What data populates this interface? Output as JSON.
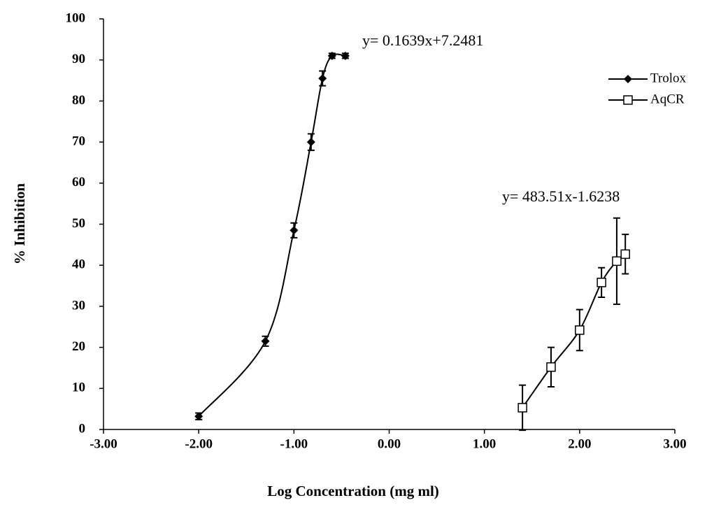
{
  "chart_data": {
    "type": "line",
    "x_label": "Log Concentration (mg ml)",
    "y_label": "% Inhibition",
    "annotations": [
      "y= 0.1639x+7.2481",
      "y= 483.51x-1.6238"
    ],
    "series": [
      {
        "name": "Trolox",
        "color": "#000000",
        "marker": "diamond",
        "x": [
          -2.0,
          -1.3,
          -1.0,
          -0.82,
          -0.7,
          -0.6,
          -0.46
        ],
        "values": [
          3.2,
          21.5,
          48.5,
          70,
          85.5,
          91,
          91
        ],
        "errors": [
          0.8,
          1.2,
          1.8,
          2,
          1.8,
          0.6,
          0.6
        ]
      },
      {
        "name": "AqCR",
        "color": "#000000",
        "marker": "square",
        "x": [
          1.4,
          1.7,
          2.0,
          2.23,
          2.39,
          2.48
        ],
        "values": [
          5.3,
          15.2,
          24.2,
          35.8,
          41,
          42.7
        ],
        "errors": [
          5.5,
          4.8,
          5,
          3.6,
          10.5,
          4.8
        ]
      }
    ],
    "xlim": [
      -3,
      3
    ],
    "xticks": [
      {
        "value": -3,
        "label": "-3.00"
      },
      {
        "value": -2,
        "label": "-2.00"
      },
      {
        "value": -1,
        "label": "-1.00"
      },
      {
        "value": 0,
        "label": "0.00"
      },
      {
        "value": 1,
        "label": "1.00"
      },
      {
        "value": 2,
        "label": "2.00"
      },
      {
        "value": 3,
        "label": "3.00"
      }
    ],
    "ylim": [
      0,
      100
    ],
    "yticks": [
      0,
      10,
      20,
      30,
      40,
      50,
      60,
      70,
      80,
      90,
      100
    ],
    "grid": false,
    "legend": "upper right"
  }
}
